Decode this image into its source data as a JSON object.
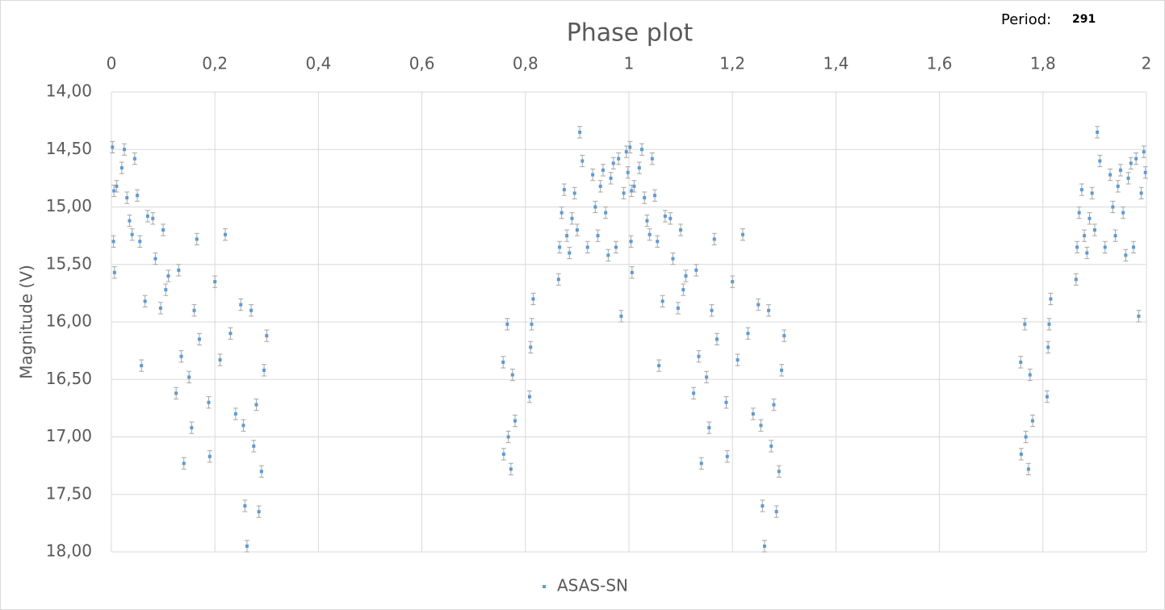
{
  "chart_data": {
    "type": "scatter",
    "title": "Phase plot",
    "period_label": "Period:",
    "period_value": 291,
    "y_label": "Magnitude (V)",
    "xlim": [
      0,
      2
    ],
    "xticks": [
      0,
      {
        "value": 0.2,
        "label": "0,2"
      },
      {
        "value": 0.4,
        "label": "0,4"
      },
      {
        "value": 0.6,
        "label": "0,6"
      },
      {
        "value": 0.8,
        "label": "0,8"
      },
      1,
      {
        "value": 1.2,
        "label": "1,2"
      },
      {
        "value": 1.4,
        "label": "1,4"
      },
      {
        "value": 1.6,
        "label": "1,6"
      },
      {
        "value": 1.8,
        "label": "1,8"
      },
      2
    ],
    "x_axis_position": "top",
    "ylim": [
      14,
      18
    ],
    "y_inverted": true,
    "yticks": [
      {
        "value": 14,
        "label": "14,00"
      },
      {
        "value": 14.5,
        "label": "14,50"
      },
      {
        "value": 15,
        "label": "15,00"
      },
      {
        "value": 15.5,
        "label": "15,50"
      },
      {
        "value": 16,
        "label": "16,00"
      },
      {
        "value": 16.5,
        "label": "16,50"
      },
      {
        "value": 17,
        "label": "17,00"
      },
      {
        "value": 17.5,
        "label": "17,50"
      },
      {
        "value": 18,
        "label": "18,00"
      }
    ],
    "grid": true,
    "legend": "bottom",
    "series": [
      {
        "name": "ASAS-SN",
        "color": "#5b9bd5",
        "error_color": "#a6a6a6",
        "error": 0.05,
        "x": [
          0.002,
          0.004,
          0.005,
          0.006,
          0.01,
          0.02,
          0.025,
          0.03,
          0.035,
          0.04,
          0.045,
          0.05,
          0.055,
          0.058,
          0.065,
          0.07,
          0.08,
          0.085,
          0.095,
          0.1,
          0.105,
          0.11,
          0.125,
          0.13,
          0.135,
          0.14,
          0.15,
          0.155,
          0.16,
          0.165,
          0.17,
          0.188,
          0.19,
          0.2,
          0.21,
          0.22,
          0.23,
          0.24,
          0.25,
          0.255,
          0.258,
          0.262,
          0.27,
          0.275,
          0.28,
          0.285,
          0.29,
          0.295,
          0.3,
          0.757,
          0.758,
          0.765,
          0.767,
          0.772,
          0.775,
          0.78,
          0.808,
          0.81,
          0.812,
          0.815,
          0.864,
          0.866,
          0.87,
          0.875,
          0.88,
          0.885,
          0.89,
          0.895,
          0.9,
          0.905,
          0.91,
          0.92,
          0.93,
          0.935,
          0.94,
          0.945,
          0.95,
          0.955,
          0.96,
          0.965,
          0.97,
          0.975,
          0.98,
          0.985,
          0.99,
          0.995,
          0.998,
          1.002,
          1.004,
          1.005,
          1.006,
          1.01,
          1.02,
          1.025,
          1.03,
          1.035,
          1.04,
          1.045,
          1.05,
          1.055,
          1.058,
          1.065,
          1.07,
          1.08,
          1.085,
          1.095,
          1.1,
          1.105,
          1.11,
          1.125,
          1.13,
          1.135,
          1.14,
          1.15,
          1.155,
          1.16,
          1.165,
          1.17,
          1.188,
          1.19,
          1.2,
          1.21,
          1.22,
          1.23,
          1.24,
          1.25,
          1.255,
          1.258,
          1.262,
          1.27,
          1.275,
          1.28,
          1.285,
          1.29,
          1.295,
          1.3,
          1.757,
          1.758,
          1.765,
          1.767,
          1.772,
          1.775,
          1.78,
          1.808,
          1.81,
          1.812,
          1.815,
          1.864,
          1.866,
          1.87,
          1.875,
          1.88,
          1.885,
          1.89,
          1.895,
          1.9,
          1.905,
          1.91,
          1.92,
          1.93,
          1.935,
          1.94,
          1.945,
          1.95,
          1.955,
          1.96,
          1.965,
          1.97,
          1.975,
          1.98,
          1.985,
          1.99,
          1.995,
          1.998
        ],
        "y": [
          14.48,
          15.3,
          14.86,
          15.57,
          14.82,
          14.66,
          14.5,
          14.92,
          15.12,
          15.24,
          14.58,
          14.9,
          15.3,
          16.38,
          15.82,
          15.08,
          15.1,
          15.45,
          15.88,
          15.2,
          15.72,
          15.6,
          16.62,
          15.55,
          16.3,
          17.23,
          16.48,
          16.92,
          15.9,
          15.28,
          16.15,
          16.7,
          17.17,
          15.65,
          16.33,
          15.24,
          16.1,
          16.8,
          15.85,
          16.9,
          17.6,
          17.95,
          15.9,
          17.08,
          16.72,
          17.65,
          17.3,
          16.42,
          16.12,
          16.35,
          17.15,
          16.02,
          17.0,
          17.28,
          16.46,
          16.86,
          16.65,
          16.22,
          16.02,
          15.8,
          15.63,
          15.35,
          15.05,
          14.85,
          15.25,
          15.4,
          15.1,
          14.88,
          15.2,
          14.35,
          14.6,
          15.35,
          14.72,
          15.0,
          15.25,
          14.82,
          14.68,
          15.05,
          15.42,
          14.75,
          14.62,
          15.35,
          14.58,
          15.95,
          14.88,
          14.52,
          14.7,
          14.48,
          15.3,
          14.86,
          15.57,
          14.82,
          14.66,
          14.5,
          14.92,
          15.12,
          15.24,
          14.58,
          14.9,
          15.3,
          16.38,
          15.82,
          15.08,
          15.1,
          15.45,
          15.88,
          15.2,
          15.72,
          15.6,
          16.62,
          15.55,
          16.3,
          17.23,
          16.48,
          16.92,
          15.9,
          15.28,
          16.15,
          16.7,
          17.17,
          15.65,
          16.33,
          15.24,
          16.1,
          16.8,
          15.85,
          16.9,
          17.6,
          17.95,
          15.9,
          17.08,
          16.72,
          17.65,
          17.3,
          16.42,
          16.12,
          16.35,
          17.15,
          16.02,
          17.0,
          17.28,
          16.46,
          16.86,
          16.65,
          16.22,
          16.02,
          15.8,
          15.63,
          15.35,
          15.05,
          14.85,
          15.25,
          15.4,
          15.1,
          14.88,
          15.2,
          14.35,
          14.6,
          15.35,
          14.72,
          15.0,
          15.25,
          14.82,
          14.68,
          15.05,
          15.42,
          14.75,
          14.62,
          15.35,
          14.58,
          15.95,
          14.88,
          14.52,
          14.7
        ]
      }
    ]
  }
}
